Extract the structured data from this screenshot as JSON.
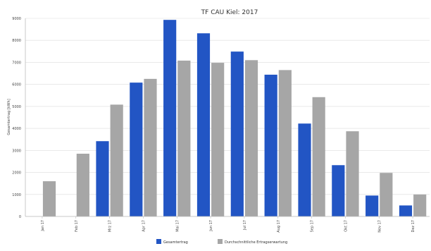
{
  "chart_data": {
    "type": "bar",
    "title": "TF CAU Kiel: 2017",
    "xlabel": "",
    "ylabel": "Gesamtertrag [kWh]",
    "categories": [
      "Jan 17",
      "Feb 17",
      "Mrz 17",
      "Apr 17",
      "Mai 17",
      "Jun 17",
      "Jul 17",
      "Aug 17",
      "Sep 17",
      "Okt 17",
      "Nov 17",
      "Dez 17"
    ],
    "series": [
      {
        "name": "Gesamtertrag",
        "color": "#2255c4",
        "values": [
          0,
          0,
          3420,
          6080,
          8930,
          8320,
          7490,
          6440,
          4220,
          2330,
          950,
          500
        ]
      },
      {
        "name": "Durchschnittliche Ertragserwartung",
        "color": "#a6a6a6",
        "values": [
          1600,
          2850,
          5080,
          6250,
          7080,
          6980,
          7100,
          6650,
          5420,
          3870,
          1980,
          1000
        ]
      }
    ],
    "yticks": [
      0,
      1000,
      2000,
      3000,
      4000,
      5000,
      6000,
      7000,
      8000,
      9000
    ],
    "ylim": [
      0,
      9000
    ],
    "grid": true,
    "legend": "bottom"
  }
}
